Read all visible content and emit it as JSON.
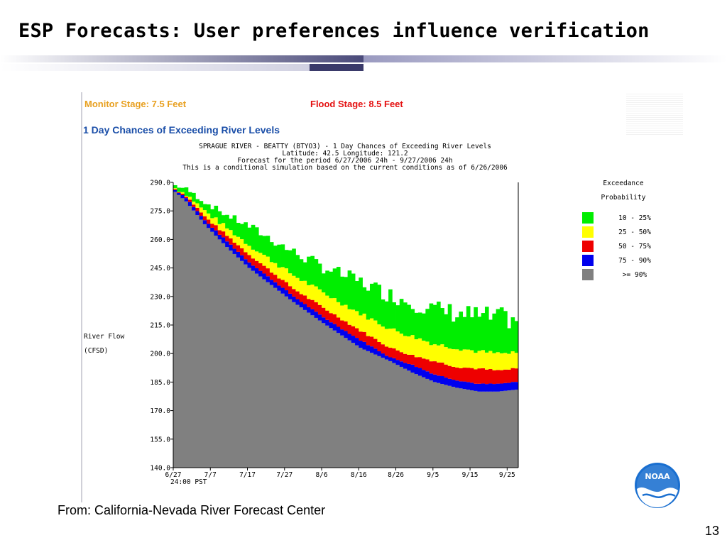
{
  "slide": {
    "title": "ESP Forecasts: User preferences influence verification",
    "source": "From: California-Nevada River Forecast Center",
    "page_number": "13"
  },
  "header": {
    "monitor_stage": "Monitor Stage: 7.5 Feet",
    "flood_stage": "Flood Stage: 8.5 Feet",
    "chances_title": "1 Day Chances of Exceeding River Levels"
  },
  "chart_data": {
    "type": "area",
    "title_lines": [
      "SPRAGUE RIVER - BEATTY (BTYO3) - 1 Day Chances of Exceeding River Levels",
      "Latitude: 42.5    Longitude:  121.2",
      "Forecast for the period 6/27/2006 24h - 9/27/2006 24h",
      "This is a conditional simulation based on the current conditions as of 6/26/2006"
    ],
    "ylabel": [
      "River Flow",
      "(CFSD)"
    ],
    "xlabel_extra": "24:00 PST",
    "ylim": [
      140,
      290
    ],
    "yticks": [
      "290.0",
      "275.0",
      "260.0",
      "245.0",
      "230.0",
      "215.0",
      "200.0",
      "185.0",
      "170.0",
      "155.0",
      "140.0"
    ],
    "xticks": [
      "6/27",
      "7/7",
      "7/17",
      "7/27",
      "8/6",
      "8/16",
      "8/26",
      "9/5",
      "9/15",
      "9/25"
    ],
    "xtick_days": [
      0,
      10,
      20,
      30,
      40,
      50,
      60,
      70,
      80,
      90
    ],
    "num_days": 93,
    "legend_title": [
      "Exceedance",
      "Probability"
    ],
    "legend": [
      {
        "label": "10 - 25%",
        "color": "#00ee00"
      },
      {
        "label": "25 - 50%",
        "color": "#ffff00"
      },
      {
        "label": "50 - 75%",
        "color": "#ee0000"
      },
      {
        "label": "75 - 90%",
        "color": "#0000ee"
      },
      {
        "label": ">= 90%",
        "color": "#808080"
      }
    ],
    "series_points": {
      "p90": [
        [
          0,
          285
        ],
        [
          3,
          280
        ],
        [
          8,
          268
        ],
        [
          14,
          256
        ],
        [
          20,
          245
        ],
        [
          26,
          236
        ],
        [
          32,
          227
        ],
        [
          40,
          216
        ],
        [
          50,
          203
        ],
        [
          58,
          196
        ],
        [
          64,
          190
        ],
        [
          70,
          185
        ],
        [
          76,
          182
        ],
        [
          82,
          180
        ],
        [
          87,
          180
        ],
        [
          92,
          181
        ]
      ],
      "p75": [
        [
          0,
          286
        ],
        [
          3,
          282
        ],
        [
          8,
          270
        ],
        [
          14,
          259
        ],
        [
          20,
          248
        ],
        [
          26,
          239
        ],
        [
          32,
          230
        ],
        [
          40,
          219
        ],
        [
          50,
          207
        ],
        [
          58,
          198
        ],
        [
          64,
          194
        ],
        [
          70,
          189
        ],
        [
          76,
          186
        ],
        [
          82,
          184
        ],
        [
          87,
          184
        ],
        [
          92,
          185
        ]
      ],
      "p50": [
        [
          0,
          286.5
        ],
        [
          3,
          283
        ],
        [
          8,
          272
        ],
        [
          14,
          262
        ],
        [
          20,
          252
        ],
        [
          26,
          243
        ],
        [
          32,
          234
        ],
        [
          40,
          224
        ],
        [
          50,
          212
        ],
        [
          58,
          203
        ],
        [
          64,
          199
        ],
        [
          70,
          196
        ],
        [
          76,
          193
        ],
        [
          82,
          192
        ],
        [
          87,
          191
        ],
        [
          92,
          192
        ]
      ],
      "p25": [
        [
          0,
          287
        ],
        [
          3,
          284
        ],
        [
          8,
          275
        ],
        [
          14,
          266
        ],
        [
          20,
          257
        ],
        [
          26,
          249
        ],
        [
          32,
          241
        ],
        [
          40,
          232
        ],
        [
          50,
          221
        ],
        [
          58,
          213
        ],
        [
          64,
          209
        ],
        [
          70,
          205
        ],
        [
          76,
          203
        ],
        [
          82,
          201
        ],
        [
          87,
          200
        ],
        [
          92,
          200
        ]
      ],
      "p10": [
        [
          0,
          288
        ],
        [
          3,
          286
        ],
        [
          8,
          279
        ],
        [
          14,
          272
        ],
        [
          20,
          266
        ],
        [
          26,
          259
        ],
        [
          32,
          252
        ],
        [
          40,
          244
        ],
        [
          50,
          236
        ],
        [
          58,
          229
        ],
        [
          64,
          225
        ],
        [
          70,
          221
        ],
        [
          76,
          219
        ],
        [
          82,
          217
        ],
        [
          87,
          216
        ],
        [
          92,
          216
        ]
      ]
    }
  }
}
